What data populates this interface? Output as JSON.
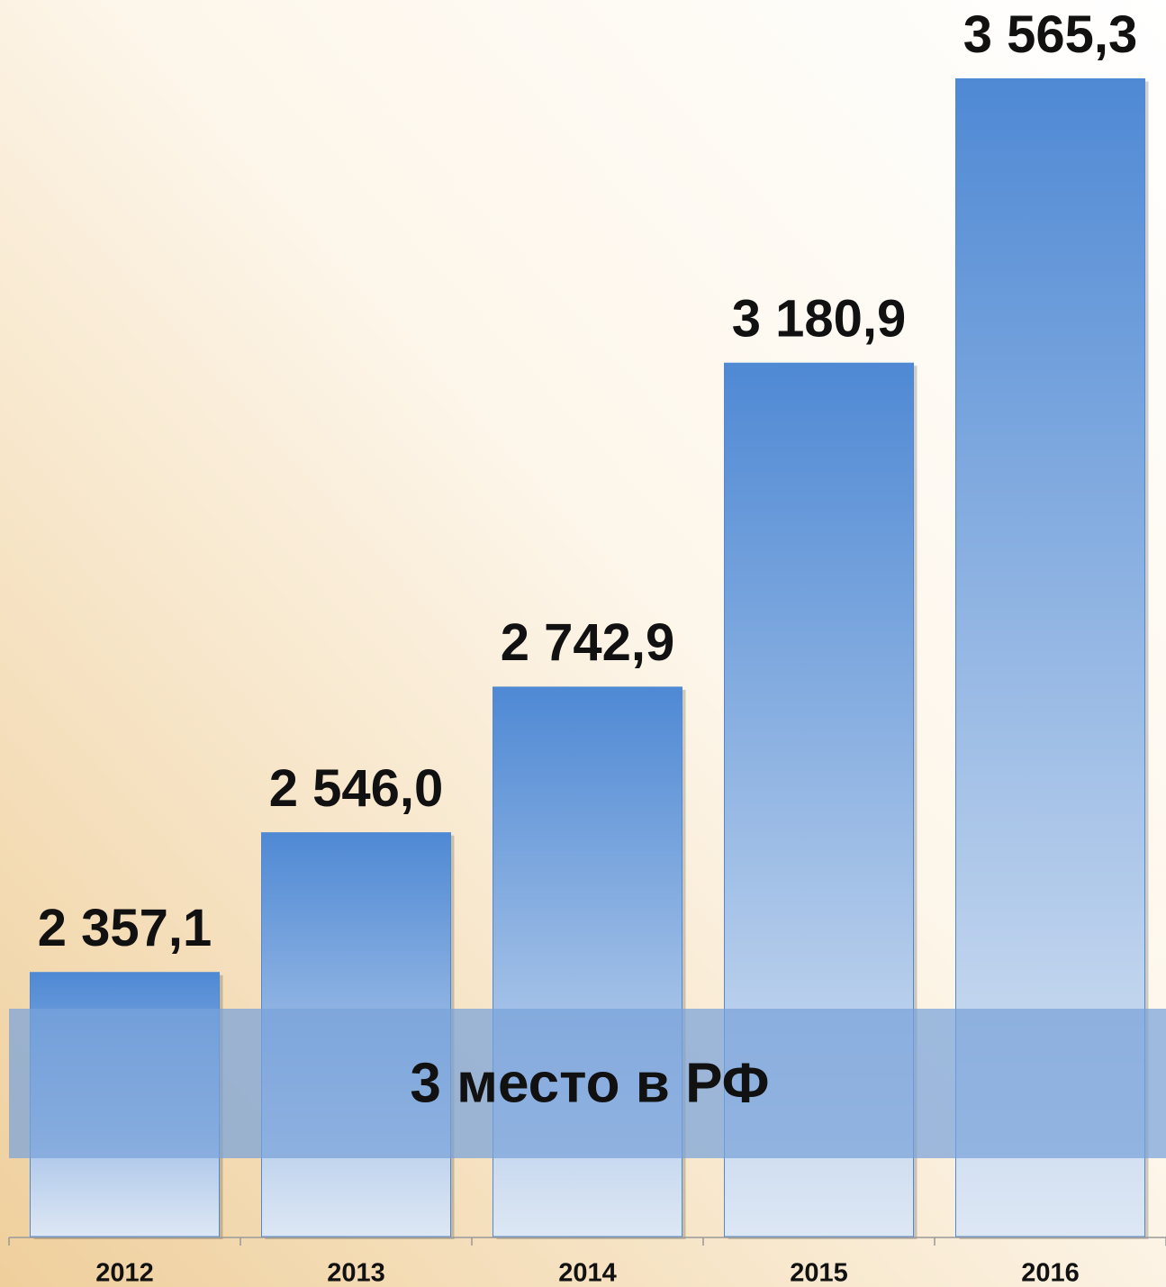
{
  "chart_data": {
    "type": "bar",
    "annotation": "3 место в РФ",
    "categories": [
      "2012",
      "2013",
      "2014",
      "2015",
      "2016"
    ],
    "values": [
      2357.1,
      2546.0,
      2742.9,
      3180.9,
      3565.3
    ],
    "value_labels": [
      "2 357,1",
      "2 546,0",
      "2 742,9",
      "3 180,9",
      "3 565,3"
    ],
    "color": "#4f89d4",
    "ylim": [
      2000,
      3600
    ]
  }
}
